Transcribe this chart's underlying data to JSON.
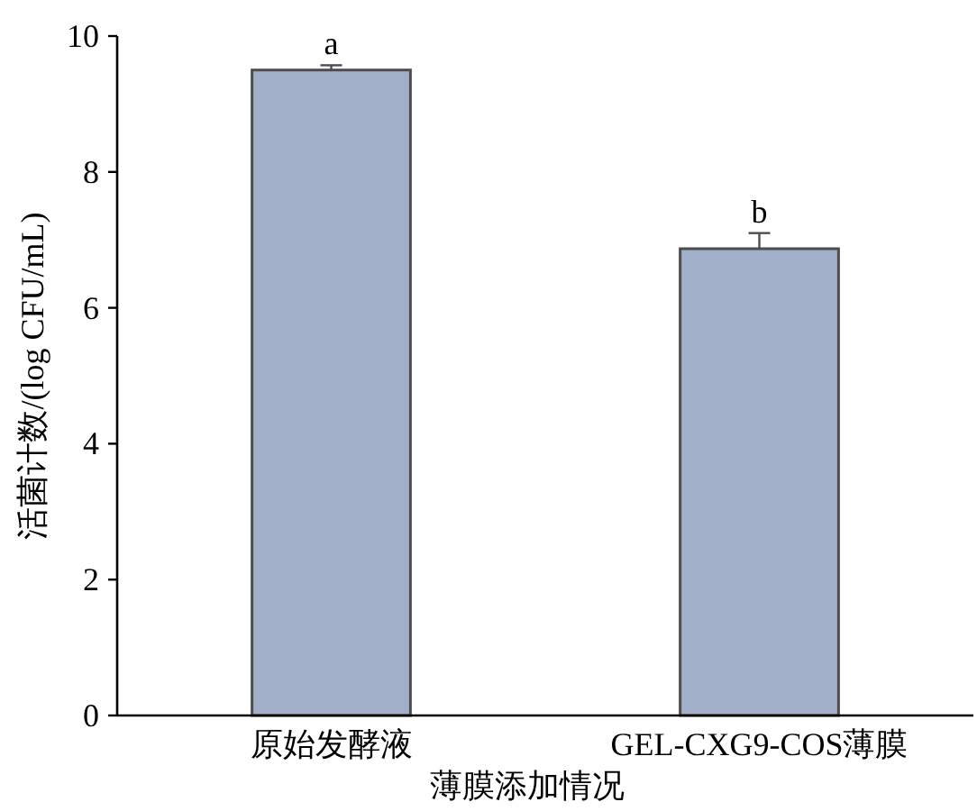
{
  "chart_data": {
    "type": "bar",
    "xlabel": "薄膜添加情况",
    "ylabel": "活菌计数/(log CFU/mL)",
    "categories": [
      "原始发酵液",
      "GEL-CXG9-COS薄膜"
    ],
    "values": [
      9.5,
      6.87
    ],
    "errors": [
      0.07,
      0.23
    ],
    "color": "#a1afc8",
    "ylim": [
      0,
      10
    ],
    "yticks": [
      0,
      2,
      4,
      6,
      8,
      10
    ],
    "annotations": [
      {
        "text": "a",
        "x": "原始发酵液",
        "y": 9.57
      },
      {
        "text": "b",
        "x": "GEL-CXG9-COS薄膜",
        "y": 7.1
      }
    ]
  }
}
